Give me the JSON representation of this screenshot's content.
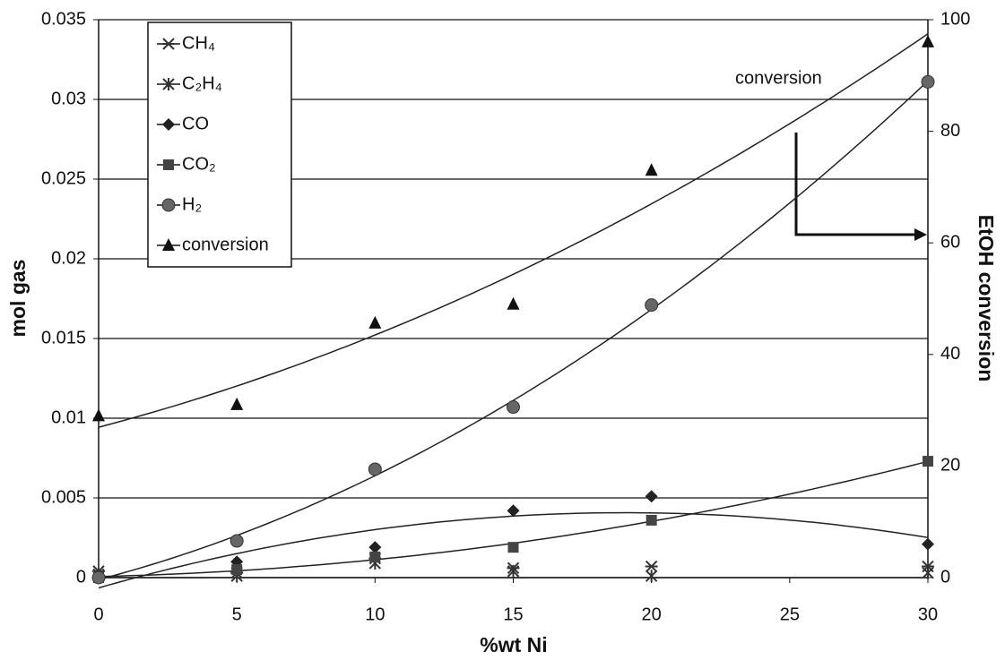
{
  "chart_data": {
    "type": "scatter",
    "x_label": "%wt Ni",
    "y_label": "mol gas",
    "y2_label": "EtOH conversion",
    "annotation": "conversion",
    "xlim": [
      0,
      30
    ],
    "xticks": [
      0,
      5,
      10,
      15,
      20,
      25,
      30
    ],
    "ylim": [
      0,
      0.035
    ],
    "yticks": [
      0,
      0.005,
      0.01,
      0.015,
      0.02,
      0.025,
      0.03,
      0.035
    ],
    "y2lim": [
      0,
      100
    ],
    "y2ticks": [
      0,
      20,
      40,
      60,
      80,
      100
    ],
    "grid": true,
    "legend": "top-left",
    "x": [
      0,
      5,
      10,
      15,
      20,
      30
    ],
    "series": [
      {
        "name": "CH₄",
        "color": "#333333",
        "marker": "xbar",
        "trendline": false,
        "values": [
          0.0004,
          0.0003,
          0.0012,
          0.0006,
          0.0007,
          0.0007
        ]
      },
      {
        "name": "C₂H₄",
        "color": "#333333",
        "marker": "star",
        "trendline": false,
        "values": [
          0.0002,
          0.0001,
          0.0009,
          0.0004,
          0.0001,
          0.0003
        ]
      },
      {
        "name": "CO",
        "color": "#222222",
        "marker": "diamond",
        "trendline": true,
        "values": [
          0,
          0.001,
          0.0019,
          0.0042,
          0.0051,
          0.0021
        ]
      },
      {
        "name": "CO₂",
        "color": "#444444",
        "marker": "square",
        "trendline": true,
        "values": [
          0,
          0.0005,
          0.0013,
          0.0019,
          0.0036,
          0.0073
        ]
      },
      {
        "name": "H₂",
        "color": "#666666",
        "marker": "circle",
        "trendline": true,
        "values": [
          0,
          0.0023,
          0.0068,
          0.0107,
          0.0171,
          0.0311
        ]
      },
      {
        "name": "conversion",
        "color": "#111111",
        "marker": "triangle",
        "trendline": true,
        "axis": "y2",
        "values": [
          29,
          31,
          45.6,
          49,
          73,
          96
        ]
      }
    ]
  }
}
